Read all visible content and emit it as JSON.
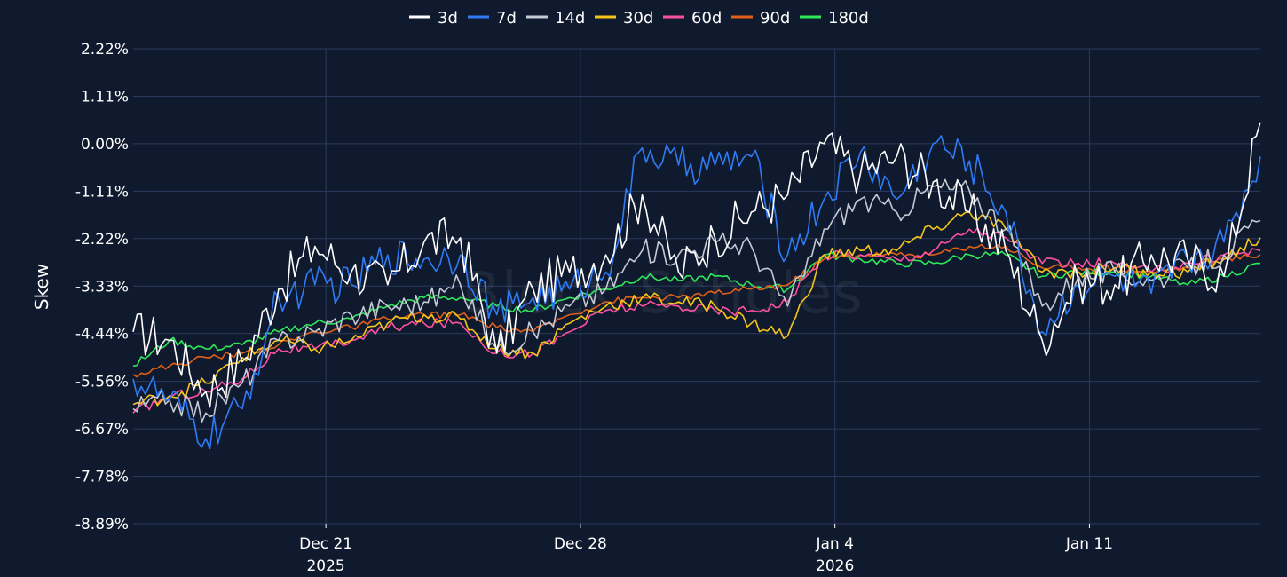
{
  "chart_data": {
    "type": "line",
    "title": "",
    "xlabel": "",
    "ylabel": "Skew",
    "ylim": [
      -8.89,
      2.22
    ],
    "y_ticks": [
      {
        "value": 2.22,
        "label": "2.22%"
      },
      {
        "value": 1.11,
        "label": "1.11%"
      },
      {
        "value": 0.0,
        "label": "0.00%"
      },
      {
        "value": -1.11,
        "label": "-1.11%"
      },
      {
        "value": -2.22,
        "label": "-2.22%"
      },
      {
        "value": -3.33,
        "label": "-3.33%"
      },
      {
        "value": -4.44,
        "label": "-4.44%"
      },
      {
        "value": -5.56,
        "label": "-5.56%"
      },
      {
        "value": -6.67,
        "label": "-6.67%"
      },
      {
        "value": -7.78,
        "label": "-7.78%"
      },
      {
        "value": -8.89,
        "label": "-8.89%"
      }
    ],
    "x_range_days": [
      0,
      31
    ],
    "x_ticks": [
      {
        "day": 5.3,
        "line1": "Dec 21",
        "line2": "2025"
      },
      {
        "day": 12.3,
        "line1": "Dec 28",
        "line2": ""
      },
      {
        "day": 19.3,
        "line1": "Jan 4",
        "line2": "2026"
      },
      {
        "day": 26.3,
        "line1": "Jan 11",
        "line2": ""
      }
    ],
    "x": [
      0,
      1,
      2,
      3,
      4,
      5,
      6,
      7,
      8,
      9,
      10,
      11,
      12,
      13,
      14,
      15,
      16,
      17,
      18,
      19,
      20,
      21,
      22,
      23,
      24,
      25,
      26,
      27,
      28,
      29,
      30,
      31
    ],
    "series": [
      {
        "name": "3d",
        "color": "#ffffff",
        "values": [
          -4.4,
          -4.6,
          -5.8,
          -5.1,
          -3.4,
          -2.4,
          -3.0,
          -3.3,
          -2.3,
          -2.2,
          -4.9,
          -3.4,
          -3.0,
          -2.6,
          -1.2,
          -3.0,
          -2.2,
          -1.6,
          -1.2,
          0.0,
          -0.7,
          -0.3,
          -0.9,
          -1.6,
          -2.5,
          -4.6,
          -3.2,
          -3.3,
          -2.6,
          -2.7,
          -3.1,
          0.5
        ]
      },
      {
        "name": "7d",
        "color": "#2f7bf5",
        "values": [
          -5.5,
          -6.0,
          -6.9,
          -6.2,
          -3.6,
          -3.3,
          -3.3,
          -2.6,
          -2.7,
          -2.6,
          -4.0,
          -3.6,
          -3.4,
          -3.0,
          -0.1,
          -0.5,
          -0.5,
          -0.3,
          -2.6,
          -1.3,
          -0.2,
          -1.3,
          0.0,
          -0.4,
          -1.6,
          -4.4,
          -3.3,
          -3.1,
          -3.5,
          -2.7,
          -2.3,
          -0.3
        ]
      },
      {
        "name": "14d",
        "color": "#c4c9d4",
        "values": [
          -6.2,
          -6.0,
          -6.3,
          -5.6,
          -4.6,
          -4.4,
          -4.0,
          -3.8,
          -3.7,
          -3.3,
          -4.8,
          -4.4,
          -3.8,
          -3.4,
          -2.5,
          -2.6,
          -2.3,
          -2.4,
          -3.8,
          -2.0,
          -1.3,
          -1.6,
          -1.0,
          -1.1,
          -2.0,
          -3.8,
          -3.1,
          -3.0,
          -3.2,
          -2.9,
          -2.6,
          -1.8
        ]
      },
      {
        "name": "30d",
        "color": "#f5c518",
        "values": [
          -6.1,
          -5.9,
          -5.6,
          -5.0,
          -4.6,
          -4.8,
          -4.6,
          -4.2,
          -4.0,
          -4.1,
          -4.8,
          -4.9,
          -4.2,
          -3.8,
          -3.6,
          -3.7,
          -3.8,
          -4.2,
          -4.5,
          -2.6,
          -2.5,
          -2.5,
          -2.0,
          -1.6,
          -2.0,
          -3.0,
          -3.0,
          -2.9,
          -3.0,
          -3.0,
          -2.7,
          -2.2
        ]
      },
      {
        "name": "60d",
        "color": "#ff4fa3",
        "values": [
          -6.3,
          -5.9,
          -5.8,
          -5.5,
          -4.8,
          -4.8,
          -4.6,
          -4.3,
          -4.2,
          -4.2,
          -4.9,
          -4.9,
          -4.4,
          -3.9,
          -3.8,
          -3.8,
          -3.9,
          -3.9,
          -3.7,
          -2.6,
          -2.6,
          -2.7,
          -2.5,
          -2.0,
          -2.2,
          -2.8,
          -2.8,
          -2.8,
          -3.0,
          -2.8,
          -2.6,
          -2.5
        ]
      },
      {
        "name": "90d",
        "color": "#e0601a",
        "values": [
          -5.4,
          -5.2,
          -5.0,
          -4.9,
          -4.7,
          -4.4,
          -4.3,
          -4.1,
          -4.0,
          -4.0,
          -4.3,
          -4.4,
          -4.0,
          -3.7,
          -3.6,
          -3.6,
          -3.5,
          -3.4,
          -3.3,
          -2.7,
          -2.6,
          -2.6,
          -2.6,
          -2.4,
          -2.4,
          -2.9,
          -2.9,
          -2.9,
          -3.0,
          -2.9,
          -2.7,
          -2.6
        ]
      },
      {
        "name": "180d",
        "color": "#2ee85a",
        "values": [
          -5.2,
          -4.6,
          -4.8,
          -4.7,
          -4.4,
          -4.2,
          -4.1,
          -3.8,
          -3.6,
          -3.6,
          -3.8,
          -3.9,
          -3.6,
          -3.4,
          -3.1,
          -3.2,
          -3.1,
          -3.3,
          -3.4,
          -2.6,
          -2.7,
          -2.8,
          -2.8,
          -2.6,
          -2.6,
          -3.1,
          -3.0,
          -3.0,
          -3.1,
          -3.3,
          -3.1,
          -2.8
        ]
      }
    ]
  },
  "watermark": "Block Scholes",
  "colors": {
    "background": "#101a2e",
    "grid": "#2a3a5c",
    "text": "#ffffff"
  }
}
